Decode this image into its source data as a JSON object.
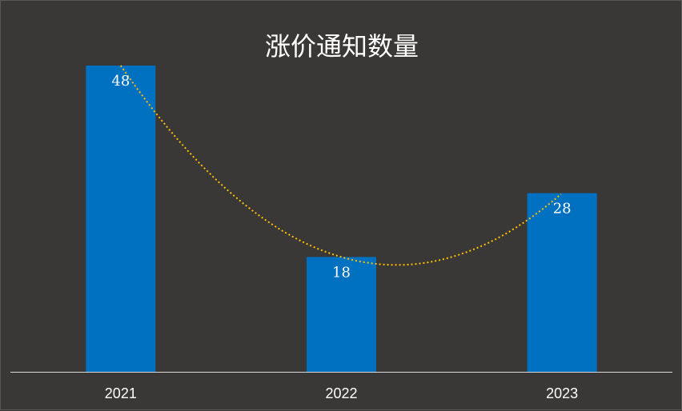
{
  "chart_data": {
    "type": "bar",
    "title": "涨价通知数量",
    "categories": [
      "2021",
      "2022",
      "2023"
    ],
    "values": [
      48,
      18,
      28
    ],
    "ylim": [
      0,
      48
    ],
    "trendline": {
      "type": "polynomial",
      "style": "dotted"
    },
    "data_labels": true,
    "grid": false,
    "legend": "none",
    "xlabel": "",
    "ylabel": ""
  },
  "colors": {
    "background": "#3a3836",
    "bar": "#0070c0",
    "trendline": "#ffc000",
    "text": "#ffffff",
    "axis": "#d9d9d9"
  }
}
